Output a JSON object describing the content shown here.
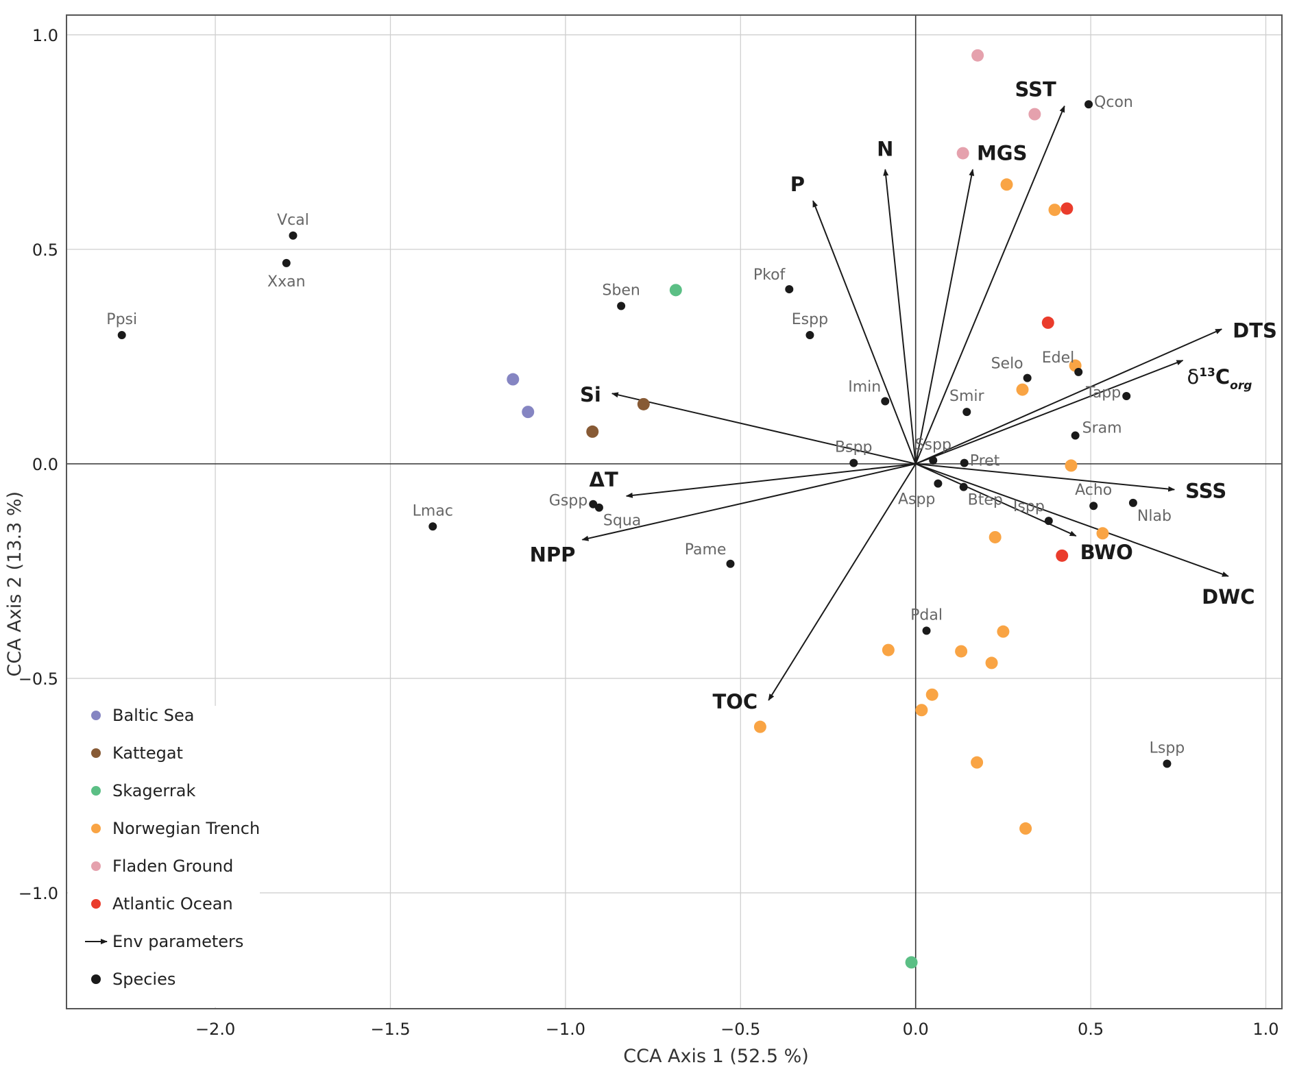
{
  "chart_data": {
    "type": "scatter",
    "subtype": "CCA biplot",
    "xlabel": "CCA Axis 1 (52.5 %)",
    "ylabel": "CCA Axis 2 (13.3 %)",
    "xlim": [
      -2.425,
      1.046
    ],
    "ylim": [
      -1.27,
      1.046
    ],
    "xticks": [
      -2.0,
      -1.5,
      -1.0,
      -0.5,
      0.0,
      0.5,
      1.0
    ],
    "yticks": [
      -1.0,
      -0.5,
      0.0,
      0.5,
      1.0
    ],
    "xtick_labels": [
      "−2.0",
      "−1.5",
      "−1.0",
      "−0.5",
      "0.0",
      "0.5",
      "1.0"
    ],
    "ytick_labels": [
      "−1.0",
      "−0.5",
      "0.0",
      "0.5",
      "1.0"
    ],
    "grid": true,
    "legend_position": "bottom-left",
    "legend": [
      {
        "label": "Baltic Sea",
        "kind": "site",
        "color": "#8585c2"
      },
      {
        "label": "Kattegat",
        "kind": "site",
        "color": "#875a35"
      },
      {
        "label": "Skagerrak",
        "kind": "site",
        "color": "#5bbf85"
      },
      {
        "label": "Norwegian Trench",
        "kind": "site",
        "color": "#f9a444"
      },
      {
        "label": "Fladen Ground",
        "kind": "site",
        "color": "#e5a1ad"
      },
      {
        "label": "Atlantic Ocean",
        "kind": "site",
        "color": "#ea3c2c"
      },
      {
        "label": "Env parameters",
        "kind": "arrow",
        "color": "#1a1a1a"
      },
      {
        "label": "Species",
        "kind": "species",
        "color": "#1a1a1a"
      }
    ],
    "sites": [
      {
        "group": "Baltic Sea",
        "points": [
          [
            -1.15,
            0.197
          ],
          [
            -1.107,
            0.121
          ]
        ]
      },
      {
        "group": "Kattegat",
        "points": [
          [
            -0.777,
            0.139
          ],
          [
            -0.923,
            0.075
          ]
        ]
      },
      {
        "group": "Skagerrak",
        "points": [
          [
            -0.685,
            0.405
          ],
          [
            -0.012,
            -1.162
          ]
        ]
      },
      {
        "group": "Fladen Ground",
        "points": [
          [
            0.177,
            0.952
          ],
          [
            0.34,
            0.815
          ],
          [
            0.135,
            0.724
          ]
        ]
      },
      {
        "group": "Atlantic Ocean",
        "points": [
          [
            0.432,
            0.595
          ],
          [
            0.378,
            0.329
          ],
          [
            0.418,
            -0.214
          ]
        ]
      },
      {
        "group": "Norwegian Trench",
        "points": [
          [
            0.26,
            0.651
          ],
          [
            0.397,
            0.592
          ],
          [
            0.456,
            0.229
          ],
          [
            0.305,
            0.173
          ],
          [
            0.444,
            -0.004
          ],
          [
            0.534,
            -0.162
          ],
          [
            0.227,
            -0.171
          ],
          [
            0.25,
            -0.391
          ],
          [
            -0.078,
            -0.434
          ],
          [
            0.13,
            -0.437
          ],
          [
            0.217,
            -0.464
          ],
          [
            0.047,
            -0.538
          ],
          [
            0.017,
            -0.574
          ],
          [
            -0.444,
            -0.613
          ],
          [
            0.175,
            -0.696
          ],
          [
            0.314,
            -0.85
          ]
        ]
      }
    ],
    "species": [
      {
        "name": "Ppsi",
        "x": -2.267,
        "y": 0.3,
        "lpos": "above"
      },
      {
        "name": "Vcal",
        "x": -1.778,
        "y": 0.532,
        "lpos": "above"
      },
      {
        "name": "Xxan",
        "x": -1.797,
        "y": 0.468,
        "lpos": "below"
      },
      {
        "name": "Lmac",
        "x": -1.379,
        "y": -0.146,
        "lpos": "above"
      },
      {
        "name": "Sben",
        "x": -0.841,
        "y": 0.368,
        "lpos": "above"
      },
      {
        "name": "Pkof",
        "x": -0.361,
        "y": 0.407,
        "lpos": "above-left"
      },
      {
        "name": "Espp",
        "x": -0.302,
        "y": 0.3,
        "lpos": "above"
      },
      {
        "name": "Imin",
        "x": -0.087,
        "y": 0.146,
        "lpos": "above-left"
      },
      {
        "name": "Bspp",
        "x": -0.177,
        "y": 0.002,
        "lpos": "above"
      },
      {
        "name": "Gspp",
        "x": -0.921,
        "y": -0.094,
        "lpos": "left"
      },
      {
        "name": "Squa",
        "x": -0.904,
        "y": -0.102,
        "lpos": "below-right"
      },
      {
        "name": "Pame",
        "x": -0.529,
        "y": -0.233,
        "lpos": "above-left"
      },
      {
        "name": "Pdal",
        "x": 0.031,
        "y": -0.389,
        "lpos": "above"
      },
      {
        "name": "Lspp",
        "x": 0.718,
        "y": -0.699,
        "lpos": "above"
      },
      {
        "name": "Qcon",
        "x": 0.494,
        "y": 0.838,
        "lpos": "right"
      },
      {
        "name": "Selo",
        "x": 0.319,
        "y": 0.2,
        "lpos": "above-left"
      },
      {
        "name": "Edel",
        "x": 0.465,
        "y": 0.214,
        "lpos": "above-left"
      },
      {
        "name": "Smir",
        "x": 0.146,
        "y": 0.121,
        "lpos": "above"
      },
      {
        "name": "Tapp",
        "x": 0.602,
        "y": 0.158,
        "lpos": "left"
      },
      {
        "name": "Sram",
        "x": 0.456,
        "y": 0.066,
        "lpos": "right-up"
      },
      {
        "name": "Sspp",
        "x": 0.05,
        "y": 0.008,
        "lpos": "above"
      },
      {
        "name": "Pret",
        "x": 0.139,
        "y": 0.002,
        "lpos": "right"
      },
      {
        "name": "Aspp",
        "x": 0.064,
        "y": -0.046,
        "lpos": "below-left"
      },
      {
        "name": "Btep",
        "x": 0.137,
        "y": -0.054,
        "lpos": "below-right"
      },
      {
        "name": "Ispp",
        "x": 0.38,
        "y": -0.133,
        "lpos": "above-left"
      },
      {
        "name": "Acho",
        "x": 0.508,
        "y": -0.098,
        "lpos": "above"
      },
      {
        "name": "Nlab",
        "x": 0.621,
        "y": -0.091,
        "lpos": "below-right"
      }
    ],
    "env_vectors": [
      {
        "name": "SST",
        "x": 0.425,
        "y": 0.834,
        "lpos": "above-left"
      },
      {
        "name": "N",
        "x": -0.087,
        "y": 0.686,
        "lpos": "above"
      },
      {
        "name": "MGS",
        "x": 0.163,
        "y": 0.686,
        "lpos": "above-right"
      },
      {
        "name": "P",
        "x": -0.293,
        "y": 0.613,
        "lpos": "above-left"
      },
      {
        "name": "DTS",
        "x": 0.874,
        "y": 0.314,
        "lpos": "right"
      },
      {
        "name": "δ13Corg",
        "x": 0.763,
        "y": 0.241,
        "lpos": "below-right",
        "display": {
          "delta": "δ",
          "sup": "13",
          "base": "C",
          "sub": "org"
        }
      },
      {
        "name": "Si",
        "x": -0.867,
        "y": 0.164,
        "lpos": "left"
      },
      {
        "name": "ΔT",
        "x": -0.826,
        "y": -0.075,
        "lpos": "above-left"
      },
      {
        "name": "NPP",
        "x": -0.952,
        "y": -0.177,
        "lpos": "below-left"
      },
      {
        "name": "TOC",
        "x": -0.42,
        "y": -0.551,
        "lpos": "left"
      },
      {
        "name": "SSS",
        "x": 0.739,
        "y": -0.06,
        "lpos": "right"
      },
      {
        "name": "BWO",
        "x": 0.458,
        "y": -0.168,
        "lpos": "below-right"
      },
      {
        "name": "DWC",
        "x": 0.893,
        "y": -0.262,
        "lpos": "below"
      }
    ]
  }
}
